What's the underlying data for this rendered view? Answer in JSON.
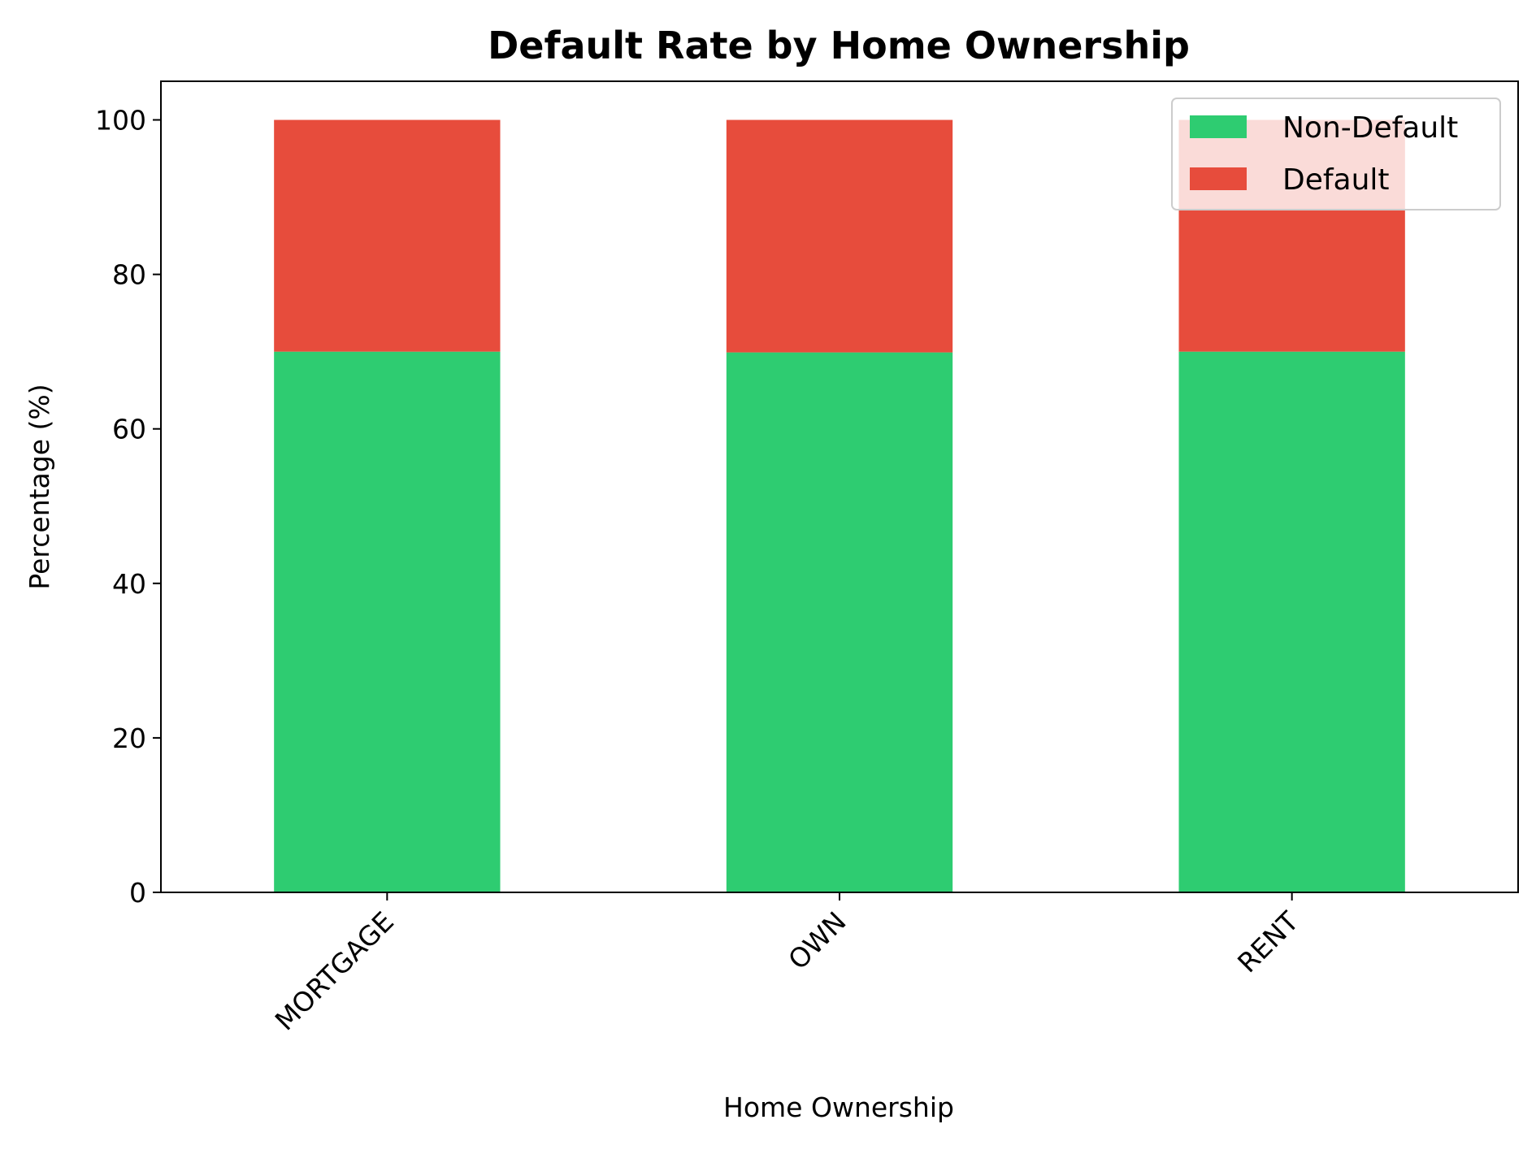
{
  "chart_data": {
    "type": "bar",
    "stacked": true,
    "title": "Default Rate by Home Ownership",
    "xlabel": "Home Ownership",
    "ylabel": "Percentage (%)",
    "categories": [
      "MORTGAGE",
      "OWN",
      "RENT"
    ],
    "series": [
      {
        "name": "Non-Default",
        "color": "#2ecc71",
        "values": [
          70.0,
          69.9,
          70.0
        ]
      },
      {
        "name": "Default",
        "color": "#e74c3c",
        "values": [
          30.0,
          30.1,
          30.0
        ]
      }
    ],
    "ylim": [
      0,
      105
    ],
    "yticks": [
      0,
      20,
      40,
      60,
      80,
      100
    ],
    "grid": false,
    "legend_position": "top-right",
    "x_tick_rotation_deg": 45
  }
}
